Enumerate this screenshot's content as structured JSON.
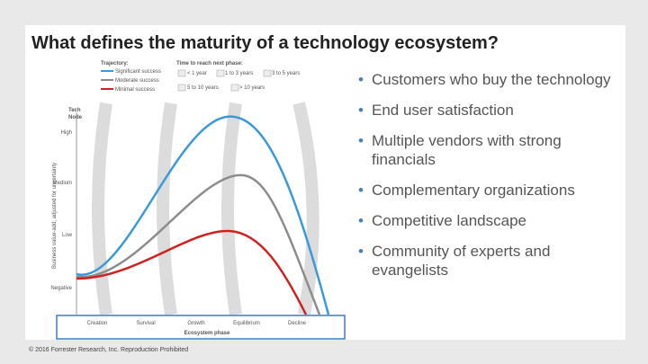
{
  "title": "What defines the maturity of a technology ecosystem?",
  "figure": {
    "legend": {
      "trajectory_title": "Trajectory:",
      "trajectories": [
        "Significant success",
        "Moderate success",
        "Minimal success"
      ],
      "time_title": "Time to reach next phase:",
      "times": [
        "< 1 year",
        "1 to 3 years",
        "3 to 5 years",
        "5 to 10 years",
        "> 10 years"
      ]
    },
    "corner_label": [
      "Tech",
      "Node"
    ],
    "y_axis_title": "Business value-add, adjusted for uncertainty",
    "y_levels": [
      "High",
      "Medium",
      "Low",
      "Negative"
    ],
    "x_phases": [
      "Creation",
      "Survival",
      "Growth",
      "Equilibrium",
      "Decline"
    ],
    "x_axis_title": "Ecosystem phase"
  },
  "bullets": [
    "Customers who buy the technology",
    "End user satisfaction",
    "Multiple vendors with strong financials",
    "Complementary organizations",
    "Competitive landscape",
    "Community of experts and evangelists"
  ],
  "footer": "© 2016 Forrester Research, Inc. Reproduction Prohibited"
}
